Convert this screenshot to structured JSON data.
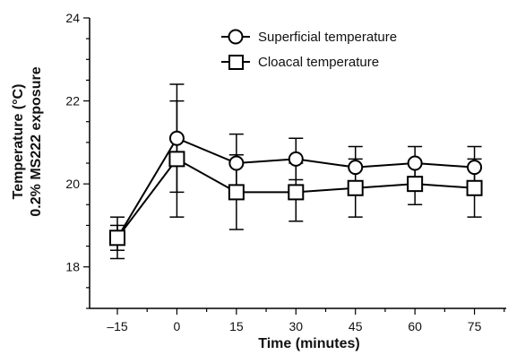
{
  "chart_data": {
    "type": "line",
    "xlabel": "Time (minutes)",
    "ylabel_lines": [
      "Temperature (°C)",
      "0.2% MS222 exposure"
    ],
    "x": [
      -15,
      0,
      15,
      30,
      45,
      60,
      75
    ],
    "x_tick_labels": [
      "–15",
      "0",
      "15",
      "30",
      "45",
      "60",
      "75"
    ],
    "xlim": [
      -22,
      83
    ],
    "ylim": [
      17,
      24
    ],
    "y_major_ticks": [
      18,
      20,
      22,
      24
    ],
    "y_minor_step": 0.5,
    "grid": false,
    "legend_position": "top-center",
    "series": [
      {
        "name": "Superficial temperature",
        "marker": "circle",
        "values": [
          18.7,
          21.1,
          20.5,
          20.6,
          20.4,
          20.5,
          20.4
        ],
        "error": [
          0.5,
          1.3,
          0.7,
          0.5,
          0.5,
          0.4,
          0.5
        ]
      },
      {
        "name": "Cloacal temperature",
        "marker": "square",
        "values": [
          18.7,
          20.6,
          19.8,
          19.8,
          19.9,
          20.0,
          19.9
        ],
        "error": [
          0.3,
          1.4,
          0.9,
          0.7,
          0.7,
          0.5,
          0.7
        ]
      }
    ]
  }
}
